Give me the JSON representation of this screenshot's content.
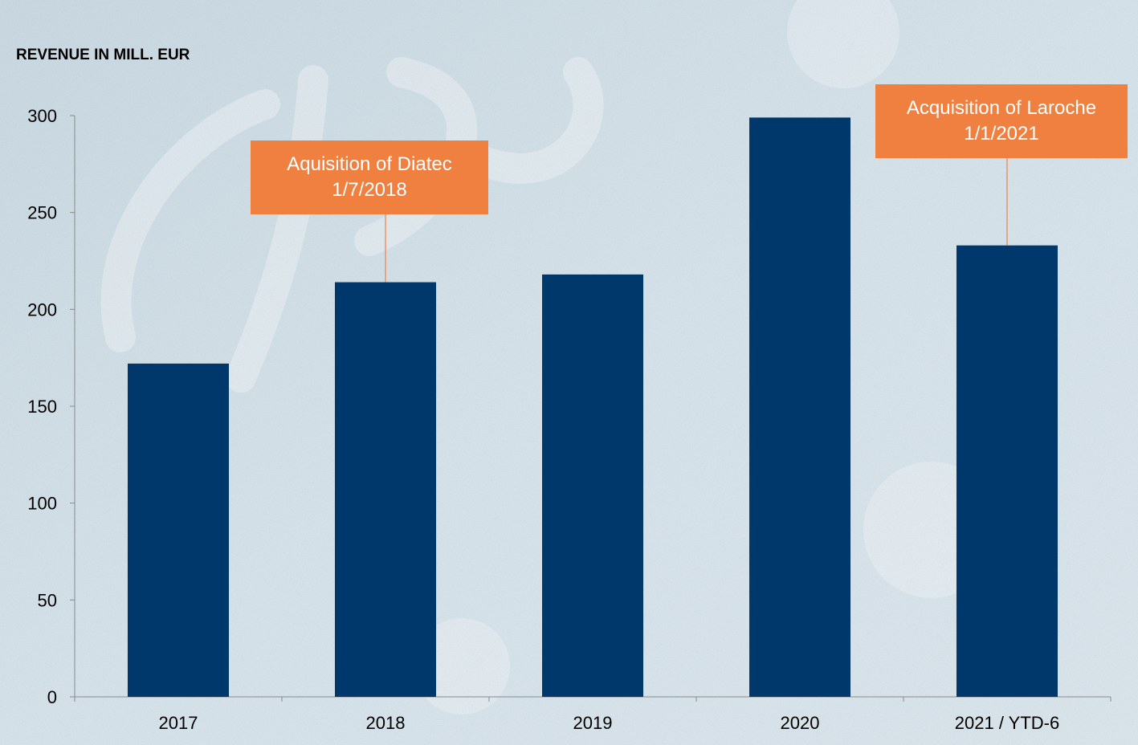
{
  "chart_data": {
    "type": "bar",
    "title": "REVENUE IN MILL. EUR",
    "categories": [
      "2017",
      "2018",
      "2019",
      "2020",
      "2021 / YTD-6"
    ],
    "values": [
      172,
      214,
      218,
      299,
      233
    ],
    "ylim": [
      0,
      300
    ],
    "yticks": [
      "0",
      "50",
      "100",
      "150",
      "200",
      "250",
      "300"
    ],
    "grid": false,
    "bar_color": "#00386b",
    "annotations": [
      {
        "category": "2018",
        "line1": "Aquisition of Diatec",
        "line2": "1/7/2018"
      },
      {
        "category": "2021 / YTD-6",
        "line1": "Acquisition of Laroche",
        "line2": "1/1/2021"
      }
    ],
    "annotation_color": "#f08040"
  }
}
